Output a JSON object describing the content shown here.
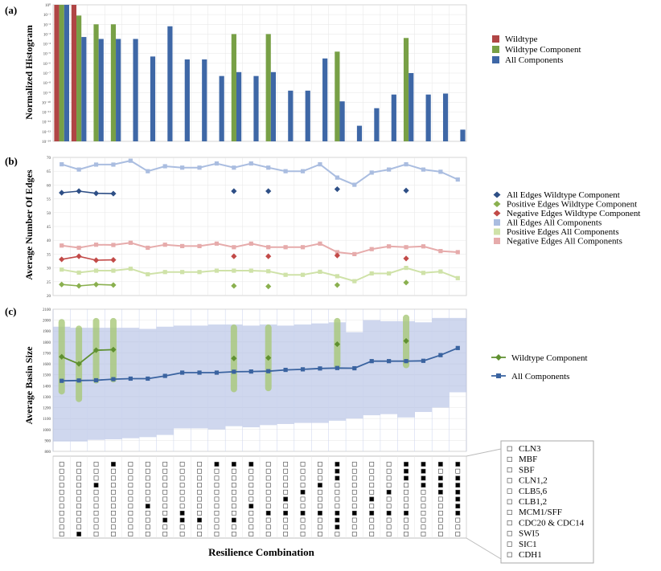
{
  "panel_labels": [
    "(a)",
    "(b)",
    "(c)"
  ],
  "chart_data": [
    {
      "type": "bar",
      "panel": "(a)",
      "ylabel": "Normalized Histogram",
      "yscale": "log",
      "ylim_exp": [
        -14,
        0
      ],
      "ytick_labels": [
        "10⁻¹⁴",
        "10⁻¹³",
        "10⁻¹²",
        "10⁻¹¹",
        "10⁻¹⁰",
        "10⁻⁹",
        "10⁻⁸",
        "10⁻⁷",
        "10⁻⁶",
        "10⁻⁵",
        "10⁻⁴",
        "10⁻³",
        "10⁻²",
        "10⁻¹",
        "10⁰"
      ],
      "legend_position": "right",
      "series": [
        {
          "name": "Wildtype",
          "color": "#b04545",
          "values": [
            0,
            0,
            null,
            null,
            null,
            null,
            null,
            null,
            null,
            null,
            null,
            null,
            null,
            null,
            null,
            null,
            null,
            null,
            null,
            null,
            null,
            null,
            null,
            null
          ]
        },
        {
          "name": "Wildtype Component",
          "color": "#78a046",
          "values": [
            0,
            -1.1,
            -2.0,
            -2.0,
            null,
            null,
            null,
            null,
            null,
            null,
            -3.0,
            null,
            -3.0,
            null,
            null,
            null,
            -4.8,
            null,
            null,
            null,
            -3.4,
            null,
            null,
            null
          ]
        },
        {
          "name": "All Components",
          "color": "#3e67a6",
          "values": [
            0,
            -3.3,
            -3.5,
            -3.5,
            -3.5,
            -5.3,
            -2.2,
            -5.6,
            -5.6,
            -7.3,
            -6.9,
            -7.3,
            -6.9,
            -8.8,
            -8.8,
            -5.5,
            -9.9,
            -12.4,
            -10.6,
            -9.2,
            -7.0,
            -9.2,
            -9.1,
            -12.8
          ]
        }
      ]
    },
    {
      "type": "line",
      "panel": "(b)",
      "ylabel": "Average Number Of Edges",
      "ylim": [
        20,
        70
      ],
      "yticks": [
        20,
        25,
        30,
        35,
        40,
        45,
        50,
        55,
        60,
        65,
        70
      ],
      "series": [
        {
          "name": "All Edges Wildtype Component",
          "color": "#2e4f86",
          "marker": "diamond",
          "values": [
            57.2,
            57.8,
            57.0,
            56.9,
            null,
            null,
            null,
            null,
            null,
            null,
            57.8,
            null,
            57.8,
            null,
            null,
            null,
            58.5,
            null,
            null,
            null,
            58.0,
            null,
            null,
            null
          ]
        },
        {
          "name": "Positive Edges Wildtype Component",
          "color": "#8ab04f",
          "marker": "diamond",
          "values": [
            24.0,
            23.5,
            24.0,
            23.8,
            null,
            null,
            null,
            null,
            null,
            null,
            23.5,
            null,
            23.3,
            null,
            null,
            null,
            23.8,
            null,
            null,
            null,
            24.7,
            null,
            null,
            null
          ]
        },
        {
          "name": "Negative Edges Wildtype Component",
          "color": "#c24a48",
          "marker": "diamond",
          "values": [
            33.1,
            34.2,
            32.8,
            32.9,
            null,
            null,
            null,
            null,
            null,
            null,
            34.2,
            null,
            34.2,
            null,
            null,
            null,
            34.5,
            null,
            null,
            null,
            33.4,
            null,
            null,
            null
          ]
        },
        {
          "name": "All Edges All Components",
          "color": "#aabde0",
          "marker": "square",
          "values": [
            67.5,
            65.6,
            67.4,
            67.4,
            68.8,
            65.0,
            66.8,
            66.3,
            66.3,
            67.8,
            66.3,
            67.8,
            66.3,
            65.0,
            65.0,
            67.5,
            62.7,
            60.1,
            64.5,
            65.6,
            67.5,
            65.6,
            64.8,
            62.0
          ]
        },
        {
          "name": "Positive Edges All Components",
          "color": "#cfe2a8",
          "marker": "square",
          "values": [
            29.4,
            28.3,
            29.0,
            29.0,
            29.7,
            27.7,
            28.5,
            28.5,
            28.5,
            29.0,
            29.0,
            29.0,
            28.8,
            27.5,
            27.5,
            28.6,
            27.0,
            25.2,
            28.0,
            28.0,
            30.0,
            28.2,
            28.7,
            26.3
          ]
        },
        {
          "name": "Negative Edges All Components",
          "color": "#e6abab",
          "marker": "square",
          "values": [
            38.1,
            37.3,
            38.4,
            38.3,
            39.1,
            37.3,
            38.4,
            37.9,
            37.9,
            38.8,
            37.5,
            38.8,
            37.5,
            37.5,
            37.5,
            38.8,
            35.7,
            35.0,
            36.8,
            37.8,
            37.5,
            37.8,
            36.1,
            35.7
          ]
        }
      ]
    },
    {
      "type": "line",
      "panel": "(c)",
      "ylabel": "Average Basin Size",
      "ylim": [
        800,
        2100
      ],
      "yticks": [
        800,
        900,
        1000,
        1100,
        1200,
        1300,
        1400,
        1500,
        1600,
        1700,
        1800,
        1900,
        2000,
        2100
      ],
      "series": [
        {
          "name": "Wildtype Component",
          "color": "#5f9030",
          "marker": "diamond",
          "values": [
            1665,
            1600,
            1725,
            1730,
            null,
            null,
            null,
            null,
            null,
            null,
            1650,
            null,
            1655,
            null,
            null,
            null,
            1780,
            null,
            null,
            null,
            1810,
            null,
            null,
            null
          ],
          "range_low": [
            1320,
            1250,
            1420,
            1430,
            null,
            null,
            null,
            null,
            null,
            null,
            1340,
            null,
            1350,
            null,
            null,
            null,
            1550,
            null,
            null,
            null,
            1560,
            null,
            null,
            null
          ],
          "range_high": [
            2010,
            1950,
            2020,
            2020,
            null,
            null,
            null,
            null,
            null,
            null,
            1960,
            null,
            1960,
            null,
            null,
            null,
            2020,
            null,
            null,
            null,
            2050,
            null,
            null,
            null
          ]
        },
        {
          "name": "All Components",
          "color": "#3a63a0",
          "marker": "square",
          "values": [
            1445,
            1448,
            1450,
            1460,
            1465,
            1465,
            1490,
            1520,
            1520,
            1520,
            1528,
            1530,
            1533,
            1545,
            1550,
            1558,
            1562,
            1560,
            1625,
            1625,
            1625,
            1628,
            1680,
            1745
          ],
          "range_low": [
            890,
            890,
            905,
            910,
            920,
            930,
            950,
            1010,
            1010,
            1000,
            1030,
            1020,
            1040,
            1050,
            1060,
            1060,
            1080,
            1100,
            1130,
            1140,
            1110,
            1160,
            1200,
            1340
          ],
          "range_high": [
            1940,
            1930,
            1930,
            1930,
            1930,
            1920,
            1940,
            1950,
            1950,
            1960,
            1960,
            1950,
            1960,
            1950,
            1960,
            1970,
            1980,
            1890,
            2000,
            1990,
            1990,
            1980,
            2020,
            2020
          ]
        }
      ]
    }
  ],
  "resilience": {
    "xlabel": "Resilience Combination",
    "genes": [
      "CLN3",
      "MBF",
      "SBF",
      "CLN1,2",
      "CLB5,6",
      "CLB1,2",
      "MCM1/SFF",
      "CDC20 & CDC14",
      "SWI5",
      "SIC1",
      "CDH1"
    ],
    "filled": [
      [],
      [
        10
      ],
      [
        3
      ],
      [
        0
      ],
      [],
      [
        6
      ],
      [
        8
      ],
      [
        7,
        8
      ],
      [
        8
      ],
      [
        0
      ],
      [
        0,
        8
      ],
      [
        0,
        6
      ],
      [
        7
      ],
      [
        5,
        7
      ],
      [
        4,
        7
      ],
      [
        3,
        7
      ],
      [
        0,
        1,
        2,
        7,
        8,
        9
      ],
      [
        7
      ],
      [
        5,
        7
      ],
      [
        4,
        7
      ],
      [
        0,
        1,
        2,
        7
      ],
      [
        0,
        1,
        2,
        3
      ],
      [
        0,
        2,
        3,
        4
      ],
      [
        0,
        2,
        3,
        4,
        5,
        6,
        7
      ]
    ]
  }
}
